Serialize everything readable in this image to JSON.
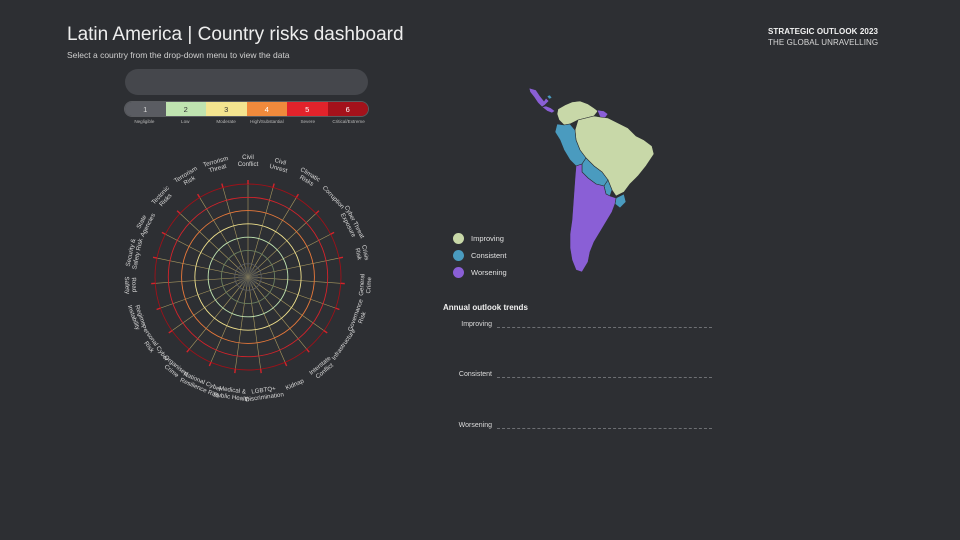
{
  "header": {
    "title": "Latin America | Country risks dashboard",
    "subtitle": "Select a country from the drop-down menu to view the data",
    "brand_line1": "STRATEGIC OUTLOOK 2023",
    "brand_line2": "THE GLOBAL UNRAVELLING"
  },
  "dropdown": {
    "value": ""
  },
  "scale": [
    {
      "num": "1",
      "label": "Negligible",
      "color": "#5a5c62",
      "text": "#d5d5d5"
    },
    {
      "num": "2",
      "label": "Low",
      "color": "#bfe3b0",
      "text": "#333333"
    },
    {
      "num": "3",
      "label": "Moderate",
      "color": "#f3e48f",
      "text": "#333333"
    },
    {
      "num": "4",
      "label": "High/Substantial",
      "color": "#f08a3c",
      "text": "#ffffff"
    },
    {
      "num": "5",
      "label": "Severe",
      "color": "#e2232b",
      "text": "#ffffff"
    },
    {
      "num": "6",
      "label": "Critical/Extreme",
      "color": "#a4121b",
      "text": "#ffffff"
    }
  ],
  "radar": {
    "ring_colors": [
      "#5a5c60",
      "#6b7f5f",
      "#bfe3b0",
      "#efe08c",
      "#e9793a",
      "#d3232b",
      "#9e1119"
    ],
    "categories": [
      "Civil Conflict",
      "Civil Unrest",
      "Climatic Risks",
      "Corruption",
      "Cyber Threat Exposure",
      "Crisis Risk",
      "General Crime",
      "Governance Risk",
      "Infrastructure",
      "Interstate Conflict",
      "Kidnap",
      "LGBTQ+ Discrimination",
      "Medical & Public Health",
      "National Cyber Resilience Risk",
      "Organised Crime",
      "Personal Cyber Risk",
      "Regime Instability",
      "Road Safety",
      "Security & Safety Risk",
      "State Agencies",
      "Tectonic Risks",
      "Terrorism Risk",
      "Terrorism Threat"
    ]
  },
  "map_legend": [
    {
      "label": "Improving",
      "color": "#c8d8a8"
    },
    {
      "label": "Consistent",
      "color": "#4a9bbf"
    },
    {
      "label": "Worsening",
      "color": "#8a5fd6"
    }
  ],
  "trends": {
    "title": "Annual outlook trends",
    "rows": [
      "Improving",
      "Consistent",
      "Worsening"
    ]
  }
}
